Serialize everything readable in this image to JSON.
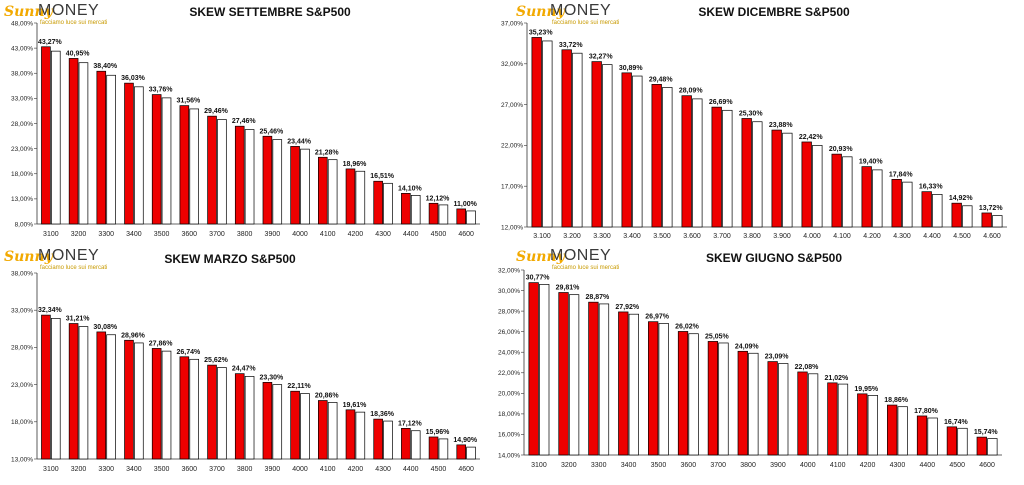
{
  "brand": {
    "sunny": "Sunny",
    "money": "MONEY",
    "tagline": "facciamo luce sui mercati"
  },
  "colors": {
    "bar_fill": "#ee0000",
    "bar_outline": "#000000",
    "shadow_fill": "#ffffff",
    "axis": "#333333"
  },
  "chart_data": [
    {
      "type": "bar",
      "title": "SKEW SETTEMBRE S&P500",
      "categories": [
        "3100",
        "3200",
        "3300",
        "3400",
        "3500",
        "3600",
        "3700",
        "3800",
        "3900",
        "4000",
        "4100",
        "4200",
        "4300",
        "4400",
        "4500",
        "4600"
      ],
      "series": [
        {
          "values": [
            43.27,
            40.95,
            38.4,
            36.03,
            33.76,
            31.56,
            29.46,
            27.46,
            25.46,
            23.44,
            21.28,
            18.96,
            16.51,
            14.1,
            12.12,
            11.0
          ]
        },
        {
          "values": [
            42.4,
            40.1,
            37.6,
            35.3,
            33.1,
            30.9,
            28.8,
            26.8,
            24.8,
            22.9,
            20.8,
            18.5,
            16.1,
            13.7,
            11.8,
            10.6
          ]
        }
      ],
      "data_labels": [
        "43,27%",
        "40,95%",
        "38,40%",
        "36,03%",
        "33,76%",
        "31,56%",
        "29,46%",
        "27,46%",
        "25,46%",
        "23,44%",
        "21,28%",
        "18,96%",
        "16,51%",
        "14,10%",
        "12,12%",
        "11,00%"
      ],
      "ylim": [
        8,
        48
      ],
      "yticks": [
        8,
        13,
        18,
        23,
        28,
        33,
        38,
        43,
        48
      ],
      "ytick_labels": [
        "8,00%",
        "13,00%",
        "18,00%",
        "23,00%",
        "28,00%",
        "33,00%",
        "38,00%",
        "43,00%",
        "48,00%"
      ],
      "grid": false,
      "legend": false
    },
    {
      "type": "bar",
      "title": "SKEW DICEMBRE S&P500",
      "categories": [
        "3.100",
        "3.200",
        "3.300",
        "3.400",
        "3.500",
        "3.600",
        "3.700",
        "3.800",
        "3.900",
        "4.000",
        "4.100",
        "4.200",
        "4.300",
        "4.400",
        "4.500",
        "4.600"
      ],
      "series": [
        {
          "values": [
            35.23,
            33.72,
            32.27,
            30.89,
            29.48,
            28.09,
            26.69,
            25.3,
            23.88,
            22.42,
            20.93,
            19.4,
            17.84,
            16.33,
            14.92,
            13.72
          ]
        },
        {
          "values": [
            34.8,
            33.3,
            31.9,
            30.5,
            29.1,
            27.7,
            26.3,
            24.9,
            23.5,
            22.0,
            20.6,
            19.0,
            17.5,
            16.0,
            14.6,
            13.4
          ]
        }
      ],
      "data_labels": [
        "35,23%",
        "33,72%",
        "32,27%",
        "30,89%",
        "29,48%",
        "28,09%",
        "26,69%",
        "25,30%",
        "23,88%",
        "22,42%",
        "20,93%",
        "19,40%",
        "17,84%",
        "16,33%",
        "14,92%",
        "13,72%"
      ],
      "ylim": [
        12,
        37
      ],
      "yticks": [
        12,
        17,
        22,
        27,
        32,
        37
      ],
      "ytick_labels": [
        "12,00%",
        "17,00%",
        "22,00%",
        "27,00%",
        "32,00%",
        "37,00%"
      ],
      "grid": false,
      "legend": false
    },
    {
      "type": "bar",
      "title": "SKEW MARZO S&P500",
      "categories": [
        "3100",
        "3200",
        "3300",
        "3400",
        "3500",
        "3600",
        "3700",
        "3800",
        "3900",
        "4000",
        "4100",
        "4200",
        "4300",
        "4400",
        "4500",
        "4600"
      ],
      "series": [
        {
          "values": [
            32.34,
            31.21,
            30.08,
            28.96,
            27.86,
            26.74,
            25.62,
            24.47,
            23.3,
            22.11,
            20.86,
            19.61,
            18.36,
            17.12,
            15.96,
            14.9
          ]
        },
        {
          "values": [
            31.9,
            30.8,
            29.7,
            28.6,
            27.5,
            26.4,
            25.3,
            24.1,
            23.0,
            21.8,
            20.6,
            19.3,
            18.1,
            16.8,
            15.7,
            14.6
          ]
        }
      ],
      "data_labels": [
        "32,34%",
        "31,21%",
        "30,08%",
        "28,96%",
        "27,86%",
        "26,74%",
        "25,62%",
        "24,47%",
        "23,30%",
        "22,11%",
        "20,86%",
        "19,61%",
        "18,36%",
        "17,12%",
        "15,96%",
        "14,90%"
      ],
      "ylim": [
        13,
        38
      ],
      "yticks": [
        13,
        18,
        23,
        28,
        33,
        38
      ],
      "ytick_labels": [
        "13,00%",
        "18,00%",
        "23,00%",
        "28,00%",
        "33,00%",
        "38,00%"
      ],
      "grid": false,
      "legend": false
    },
    {
      "type": "bar",
      "title": "SKEW GIUGNO S&P500",
      "categories": [
        "3100",
        "3200",
        "3300",
        "3400",
        "3500",
        "3600",
        "3700",
        "3800",
        "3900",
        "4000",
        "4100",
        "4200",
        "4300",
        "4400",
        "4500",
        "4600"
      ],
      "series": [
        {
          "values": [
            30.77,
            29.81,
            28.87,
            27.92,
            26.97,
            26.02,
            25.05,
            24.09,
            23.09,
            22.08,
            21.02,
            19.95,
            18.86,
            17.8,
            16.74,
            15.74
          ]
        },
        {
          "values": [
            30.6,
            29.6,
            28.7,
            27.7,
            26.8,
            25.8,
            24.9,
            23.9,
            22.9,
            21.9,
            20.9,
            19.8,
            18.7,
            17.6,
            16.6,
            15.6
          ]
        }
      ],
      "data_labels": [
        "30,77%",
        "29,81%",
        "28,87%",
        "27,92%",
        "26,97%",
        "26,02%",
        "25,05%",
        "24,09%",
        "23,09%",
        "22,08%",
        "21,02%",
        "19,95%",
        "18,86%",
        "17,80%",
        "16,74%",
        "15,74%"
      ],
      "ylim": [
        14,
        32
      ],
      "yticks": [
        14,
        16,
        18,
        20,
        22,
        24,
        26,
        28,
        30,
        32
      ],
      "ytick_labels": [
        "14,00%",
        "16,00%",
        "18,00%",
        "20,00%",
        "22,00%",
        "24,00%",
        "26,00%",
        "28,00%",
        "30,00%",
        "32,00%"
      ],
      "grid": false,
      "legend": false
    }
  ]
}
